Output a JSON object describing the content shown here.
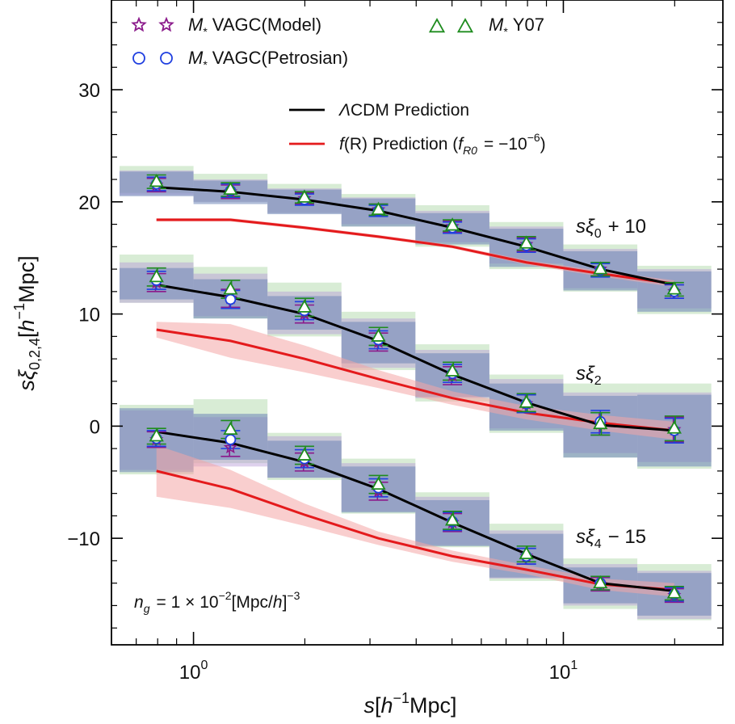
{
  "chart_data": {
    "type": "line",
    "xscale": "log",
    "xlim": [
      0.6,
      27
    ],
    "ylim": [
      -19.5,
      38
    ],
    "xticks": [
      {
        "value": 1,
        "base": "10",
        "exp": "0"
      },
      {
        "value": 10,
        "base": "10",
        "exp": "1"
      }
    ],
    "yticks": [
      -10,
      0,
      10,
      20,
      30
    ],
    "ytick_labels": [
      "−10",
      "0",
      "10",
      "20",
      "30"
    ],
    "xlabel": {
      "s": "s",
      "bracket_open": "[",
      "h": "h",
      "exp": "−1",
      "unit": "Mpc]"
    },
    "ylabel": {
      "s": "sξ",
      "sub": "0,2,4",
      "bracket_open": "[",
      "h": "h",
      "exp": "−1",
      "unit": "Mpc]"
    },
    "grid": false,
    "legend": {
      "items": [
        {
          "marker": "star",
          "sym": "M",
          "sub": "*",
          "text": "VAGC(Model)",
          "color": "#8b1a8b"
        },
        {
          "marker": "circle",
          "sym": "M",
          "sub": "*",
          "text": "VAGC(Petrosian)",
          "color": "#1f3fe0"
        },
        {
          "marker": "triangle",
          "sym": "M",
          "sub": "*",
          "text": "Y07",
          "color": "#1e8c1e"
        }
      ],
      "lines": [
        {
          "prefix": "Λ",
          "text": "CDM Prediction",
          "color": "#000000"
        },
        {
          "f": "f",
          "paren": "(R)",
          "text": "Prediction (",
          "fsub": "R0",
          "eq": "= −10",
          "exp": "−6",
          "close": ")",
          "color": "#e41a1c"
        }
      ]
    },
    "annotations": {
      "mono": {
        "s": "sξ",
        "sub": "0",
        "rest": "+ 10"
      },
      "quad": {
        "s": "sξ",
        "sub": "2",
        "rest": ""
      },
      "hexa": {
        "s": "sξ",
        "sub": "4",
        "rest": "− 15"
      },
      "density": {
        "n": "n",
        "sub": "g",
        "rest": "= 1 × 10",
        "exp": "−2",
        "tail": "[Mpc/",
        "h": "h",
        "tail2": "]",
        "exp2": "−3"
      }
    },
    "colors": {
      "lcdm": "#000000",
      "fR": "#e41a1c",
      "fR_band": "#f4a6a6",
      "box_green": "#a8d5a2",
      "box_purple": "#b69ad6",
      "box_blue": "#6e85b8"
    },
    "bin_edges": [
      0.631,
      1.0,
      1.585,
      2.512,
      3.981,
      6.31,
      10.0,
      15.85,
      25.12
    ],
    "x": [
      0.794,
      1.259,
      1.995,
      3.162,
      5.012,
      7.943,
      12.59,
      19.95
    ],
    "series": [
      {
        "name": "sξ0 + 10",
        "model": [
          21.5,
          20.9,
          20.3,
          19.3,
          17.8,
          16.2,
          14.0,
          12.0
        ],
        "petrosian": [
          21.6,
          21.0,
          20.2,
          19.2,
          17.7,
          16.1,
          13.9,
          12.0
        ],
        "y07": [
          21.8,
          21.1,
          20.4,
          19.3,
          17.9,
          16.3,
          14.0,
          12.2
        ],
        "err": [
          0.6,
          0.6,
          0.5,
          0.5,
          0.5,
          0.6,
          0.6,
          0.6
        ],
        "lcdm": [
          21.3,
          20.9,
          20.2,
          19.2,
          17.7,
          16.0,
          14.0,
          12.6
        ],
        "fR": [
          18.4,
          18.4,
          17.7,
          16.9,
          16.0,
          14.6,
          13.6,
          12.7
        ],
        "fR_band": [
          0.15,
          0.15,
          0.15,
          0.15,
          0.15,
          0.2,
          0.25,
          0.3
        ],
        "box_green": [
          [
            20.8,
            23.2
          ],
          [
            20.0,
            22.5
          ],
          [
            19.0,
            21.6
          ],
          [
            17.8,
            20.7
          ],
          [
            16.0,
            19.7
          ],
          [
            14.0,
            18.2
          ],
          [
            12.0,
            16.2
          ],
          [
            10.0,
            14.3
          ]
        ],
        "box_purple": [
          [
            20.6,
            22.8
          ],
          [
            20.0,
            22.0
          ],
          [
            19.0,
            21.2
          ],
          [
            18.0,
            20.4
          ],
          [
            16.4,
            19.2
          ],
          [
            14.5,
            17.8
          ],
          [
            12.3,
            15.8
          ],
          [
            10.5,
            14.0
          ]
        ],
        "box_blue": [
          [
            20.5,
            22.7
          ],
          [
            19.8,
            21.9
          ],
          [
            18.9,
            21.1
          ],
          [
            17.8,
            20.3
          ],
          [
            16.2,
            19.0
          ],
          [
            14.2,
            17.6
          ],
          [
            12.1,
            15.6
          ],
          [
            10.2,
            13.8
          ]
        ]
      },
      {
        "name": "sξ2",
        "model": [
          12.8,
          11.4,
          10.0,
          7.5,
          4.5,
          2.0,
          0.2,
          -0.3
        ],
        "petrosian": [
          13.0,
          11.3,
          10.3,
          7.7,
          4.7,
          2.0,
          0.4,
          -0.4
        ],
        "y07": [
          13.3,
          12.2,
          10.6,
          8.0,
          4.9,
          2.1,
          0.2,
          -0.2
        ],
        "err": [
          0.8,
          0.8,
          0.8,
          0.8,
          0.8,
          0.8,
          1.0,
          1.1
        ],
        "lcdm": [
          12.6,
          11.5,
          10.0,
          7.6,
          4.6,
          2.1,
          0.1,
          -0.4
        ],
        "fR": [
          8.6,
          7.6,
          6.0,
          4.2,
          2.5,
          1.2,
          0.3,
          -0.4
        ],
        "fR_band": [
          0.7,
          1.5,
          1.2,
          0.8,
          0.6,
          0.6,
          0.7,
          0.8
        ],
        "box_green": [
          [
            11.0,
            15.3
          ],
          [
            9.6,
            14.2
          ],
          [
            8.0,
            12.8
          ],
          [
            5.0,
            10.2
          ],
          [
            2.2,
            7.3
          ],
          [
            -0.6,
            4.6
          ],
          [
            -2.8,
            3.8
          ],
          [
            -3.8,
            3.8
          ]
        ],
        "box_purple": [
          [
            11.0,
            14.6
          ],
          [
            9.8,
            13.6
          ],
          [
            8.2,
            12.0
          ],
          [
            5.2,
            9.6
          ],
          [
            2.5,
            6.8
          ],
          [
            -0.2,
            4.2
          ],
          [
            -2.4,
            3.0
          ],
          [
            -3.2,
            3.0
          ]
        ],
        "box_blue": [
          [
            11.3,
            14.1
          ],
          [
            9.6,
            13.1
          ],
          [
            8.6,
            11.6
          ],
          [
            5.6,
            9.3
          ],
          [
            2.6,
            6.5
          ],
          [
            -0.4,
            3.8
          ],
          [
            -2.8,
            2.7
          ],
          [
            -3.6,
            2.8
          ]
        ]
      },
      {
        "name": "sξ4 − 15",
        "model": [
          -1.2,
          -1.9,
          -3.2,
          -5.8,
          -8.6,
          -11.6,
          -14.1,
          -15.1
        ],
        "petrosian": [
          -1.1,
          -1.2,
          -2.9,
          -5.5,
          -8.5,
          -11.6,
          -14.0,
          -15.0
        ],
        "y07": [
          -0.9,
          -0.3,
          -2.6,
          -5.2,
          -8.4,
          -11.4,
          -14.0,
          -14.9
        ],
        "err": [
          0.7,
          0.8,
          0.8,
          0.8,
          0.8,
          0.7,
          0.6,
          0.6
        ],
        "lcdm": [
          -0.5,
          -1.5,
          -3.2,
          -5.6,
          -8.6,
          -11.4,
          -14.0,
          -14.7
        ],
        "fR": [
          -4.0,
          -5.6,
          -7.9,
          -10.0,
          -11.6,
          -12.8,
          -14.1,
          -14.6
        ],
        "fR_band": [
          2.3,
          1.7,
          1.0,
          0.6,
          0.5,
          0.4,
          0.5,
          0.6
        ],
        "box_green": [
          [
            -4.3,
            1.9
          ],
          [
            -3.3,
            2.4
          ],
          [
            -4.8,
            -0.6
          ],
          [
            -7.8,
            -2.9
          ],
          [
            -10.8,
            -5.9
          ],
          [
            -13.8,
            -8.7
          ],
          [
            -16.3,
            -11.8
          ],
          [
            -17.3,
            -12.3
          ]
        ],
        "box_purple": [
          [
            -3.9,
            1.4
          ],
          [
            -3.6,
            0.8
          ],
          [
            -4.6,
            -0.9
          ],
          [
            -7.6,
            -3.3
          ],
          [
            -10.6,
            -6.3
          ],
          [
            -13.6,
            -9.3
          ],
          [
            -16.0,
            -12.3
          ],
          [
            -17.2,
            -12.9
          ]
        ],
        "box_blue": [
          [
            -4.1,
            1.6
          ],
          [
            -3.0,
            1.1
          ],
          [
            -4.6,
            -1.3
          ],
          [
            -7.7,
            -3.6
          ],
          [
            -10.7,
            -6.6
          ],
          [
            -13.5,
            -9.6
          ],
          [
            -15.8,
            -12.6
          ],
          [
            -16.9,
            -13.1
          ]
        ]
      }
    ]
  }
}
